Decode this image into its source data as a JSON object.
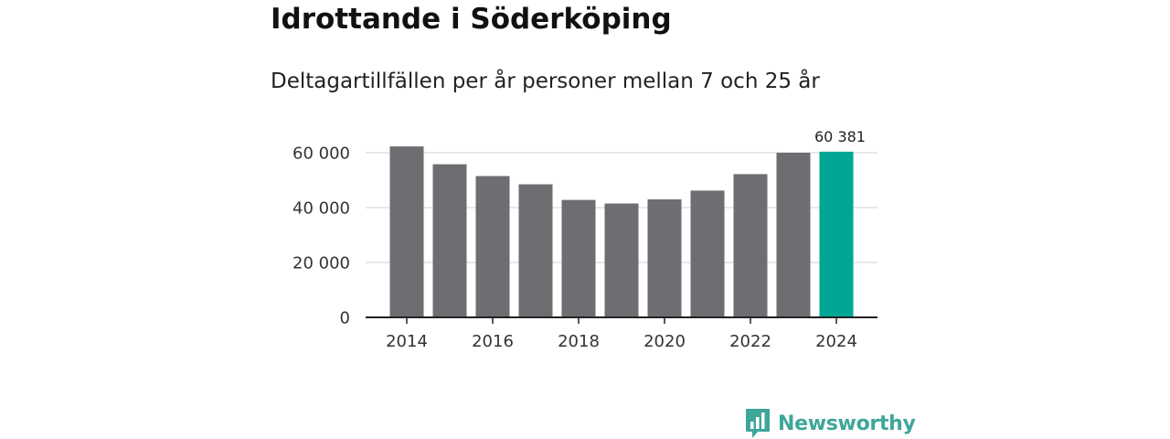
{
  "title": "Idrottande i Söderköping",
  "subtitle": "Deltagartillfällen per år personer mellan 7 och 25 år",
  "logo": {
    "text": "Newsworthy",
    "icon": "bar-chart-speech-bubble-icon"
  },
  "colors": {
    "bar": "#6e6d72",
    "highlight": "#00a596",
    "gridline": "#d9d9d9",
    "axis": "#222222",
    "logo": "#3fa69a"
  },
  "chart_data": {
    "type": "bar",
    "title": "Idrottande i Söderköping",
    "subtitle": "Deltagartillfällen per år personer mellan 7 och 25 år",
    "xlabel": "",
    "ylabel": "",
    "categories": [
      "2014",
      "2015",
      "2016",
      "2017",
      "2018",
      "2019",
      "2020",
      "2021",
      "2022",
      "2023",
      "2024"
    ],
    "values": [
      62300,
      55800,
      51500,
      48500,
      42800,
      41500,
      43000,
      46200,
      52200,
      60000,
      60381
    ],
    "x_tick_labels": [
      "2014",
      "2016",
      "2018",
      "2020",
      "2022",
      "2024"
    ],
    "y_ticks": [
      0,
      20000,
      40000,
      60000
    ],
    "y_tick_labels": [
      "0",
      "20 000",
      "40 000",
      "60 000"
    ],
    "ylim": [
      0,
      63000
    ],
    "grid": true,
    "highlight_index": 10,
    "annotation": {
      "index": 10,
      "text": "60 381"
    }
  }
}
